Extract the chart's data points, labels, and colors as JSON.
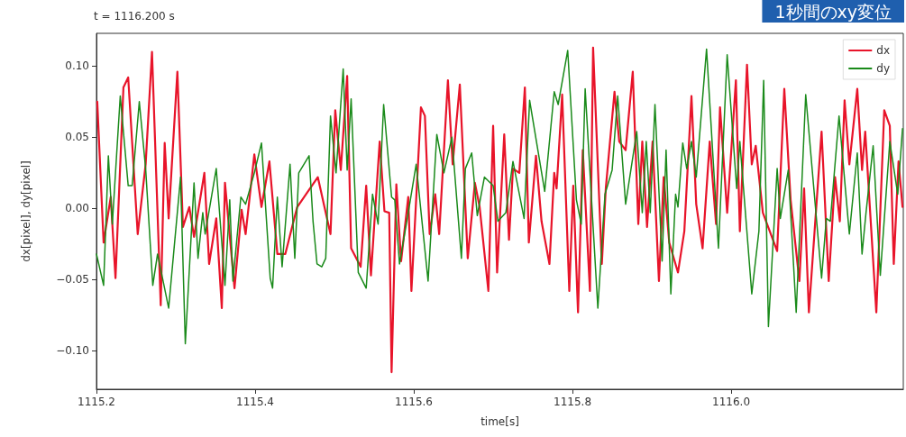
{
  "chart_data": {
    "type": "line",
    "title": "1秒間のxy変位",
    "subtitle": "t = 1116.200 s",
    "xlabel": "time[s]",
    "ylabel": "dx[pixel], dy[pixel]",
    "xlim": [
      1115.2,
      1116.217
    ],
    "ylim": [
      -0.127,
      0.123
    ],
    "xticks": [
      1115.2,
      1115.4,
      1115.6,
      1115.8,
      {
        "value": 1116,
        "label": "1116.0"
      }
    ],
    "yticks": [
      {
        "value": -0.1,
        "label": "−0.10"
      },
      {
        "value": -0.05,
        "label": "−0.05"
      },
      {
        "value": 0,
        "label": "0.00"
      },
      {
        "value": 0.05,
        "label": "0.05"
      },
      {
        "value": 0.1,
        "label": "0.10"
      }
    ],
    "grid": false,
    "legend": "top right",
    "marker": "none",
    "line_style": "solid",
    "series": [
      {
        "name": "dx",
        "color": "#e8142a",
        "x": [
          1115.201,
          1115.209,
          1115.218,
          1115.224,
          1115.234,
          1115.24,
          1115.252,
          1115.262,
          1115.27,
          1115.281,
          1115.286,
          1115.291,
          1115.302,
          1115.309,
          1115.317,
          1115.323,
          1115.336,
          1115.342,
          1115.351,
          1115.358,
          1115.362,
          1115.374,
          1115.383,
          1115.388,
          1115.399,
          1115.408,
          1115.418,
          1115.428,
          1115.438,
          1115.453,
          1115.479,
          1115.495,
          1115.501,
          1115.508,
          1115.516,
          1115.521,
          1115.533,
          1115.54,
          1115.546,
          1115.557,
          1115.563,
          1115.569,
          1115.572,
          1115.578,
          1115.584,
          1115.593,
          1115.597,
          1115.609,
          1115.614,
          1115.62,
          1115.627,
          1115.632,
          1115.643,
          1115.649,
          1115.658,
          1115.668,
          1115.677,
          1115.683,
          1115.694,
          1115.7,
          1115.705,
          1115.714,
          1115.72,
          1115.725,
          1115.733,
          1115.74,
          1115.745,
          1115.754,
          1115.761,
          1115.771,
          1115.777,
          1115.78,
          1115.787,
          1115.796,
          1115.801,
          1115.807,
          1115.813,
          1115.822,
          1115.826,
          1115.837,
          1115.842,
          1115.853,
          1115.859,
          1115.867,
          1115.876,
          1115.883,
          1115.888,
          1115.894,
          1115.901,
          1115.909,
          1115.915,
          1115.922,
          1115.933,
          1115.941,
          1115.95,
          1115.956,
          1115.964,
          1115.973,
          1115.981,
          1115.986,
          1115.995,
          1116.006,
          1116.011,
          1116.02,
          1116.026,
          1116.031,
          1116.04,
          1116.058,
          1116.067,
          1116.075,
          1116.086,
          1116.092,
          1116.098,
          1116.114,
          1116.123,
          1116.131,
          1116.137,
          1116.143,
          1116.149,
          1116.159,
          1116.165,
          1116.169,
          1116.183,
          1116.193,
          1116.2,
          1116.205,
          1116.211,
          1116.216
        ],
        "values": [
          0.075,
          -0.024,
          0.008,
          -0.049,
          0.085,
          0.092,
          -0.018,
          0.031,
          0.11,
          -0.068,
          0.046,
          -0.007,
          0.096,
          -0.013,
          0.001,
          -0.02,
          0.025,
          -0.039,
          -0.007,
          -0.07,
          0.018,
          -0.056,
          -0.001,
          -0.018,
          0.038,
          0.001,
          0.033,
          -0.032,
          -0.032,
          0.001,
          0.022,
          -0.018,
          0.069,
          0.027,
          0.093,
          -0.028,
          -0.041,
          0.016,
          -0.047,
          0.047,
          -0.002,
          -0.003,
          -0.115,
          0.017,
          -0.037,
          0.008,
          -0.058,
          0.071,
          0.065,
          -0.018,
          0.01,
          -0.018,
          0.09,
          0.031,
          0.087,
          -0.035,
          0.018,
          0.001,
          -0.058,
          0.058,
          -0.045,
          0.052,
          -0.022,
          0.028,
          0.025,
          0.085,
          -0.024,
          0.037,
          -0.009,
          -0.039,
          0.025,
          0.014,
          0.08,
          -0.058,
          0.016,
          -0.073,
          0.041,
          -0.058,
          0.113,
          -0.039,
          0.014,
          0.082,
          0.047,
          0.041,
          0.096,
          -0.011,
          0.047,
          -0.013,
          0.047,
          -0.051,
          0.022,
          -0.024,
          -0.045,
          -0.016,
          0.079,
          0.003,
          -0.028,
          0.047,
          -0.011,
          0.071,
          -0.003,
          0.09,
          -0.016,
          0.101,
          0.031,
          0.044,
          -0.003,
          -0.03,
          0.084,
          0.006,
          -0.051,
          0.014,
          -0.073,
          0.054,
          -0.051,
          0.022,
          -0.009,
          0.076,
          0.031,
          0.084,
          0.027,
          0.054,
          -0.073,
          0.069,
          0.058,
          -0.039,
          0.033,
          0.001
        ]
      },
      {
        "name": "dy",
        "color": "#1a8a1a",
        "x": [
          1115.2,
          1115.209,
          1115.215,
          1115.22,
          1115.23,
          1115.24,
          1115.245,
          1115.254,
          1115.262,
          1115.271,
          1115.277,
          1115.291,
          1115.306,
          1115.312,
          1115.323,
          1115.328,
          1115.334,
          1115.337,
          1115.351,
          1115.362,
          1115.368,
          1115.372,
          1115.382,
          1115.388,
          1115.399,
          1115.408,
          1115.419,
          1115.422,
          1115.428,
          1115.434,
          1115.444,
          1115.45,
          1115.455,
          1115.468,
          1115.473,
          1115.478,
          1115.484,
          1115.489,
          1115.495,
          1115.502,
          1115.511,
          1115.516,
          1115.521,
          1115.53,
          1115.54,
          1115.548,
          1115.555,
          1115.562,
          1115.572,
          1115.576,
          1115.582,
          1115.593,
          1115.603,
          1115.618,
          1115.629,
          1115.638,
          1115.648,
          1115.66,
          1115.665,
          1115.673,
          1115.68,
          1115.689,
          1115.7,
          1115.706,
          1115.716,
          1115.725,
          1115.739,
          1115.746,
          1115.765,
          1115.777,
          1115.782,
          1115.794,
          1115.805,
          1115.811,
          1115.816,
          1115.825,
          1115.832,
          1115.841,
          1115.85,
          1115.857,
          1115.867,
          1115.881,
          1115.888,
          1115.893,
          1115.898,
          1115.904,
          1115.913,
          1115.918,
          1115.924,
          1115.93,
          1115.933,
          1115.939,
          1115.944,
          1115.95,
          1115.956,
          1115.969,
          1115.984,
          1115.995,
          1116.007,
          1116.011,
          1116.026,
          1116.035,
          1116.041,
          1116.047,
          1116.058,
          1116.062,
          1116.072,
          1116.082,
          1116.094,
          1116.114,
          1116.12,
          1116.125,
          1116.136,
          1116.149,
          1116.159,
          1116.165,
          1116.17,
          1116.179,
          1116.188,
          1116.2,
          1116.21,
          1116.216
        ],
        "values": [
          -0.032,
          -0.054,
          0.037,
          -0.011,
          0.079,
          0.016,
          0.016,
          0.075,
          0.028,
          -0.054,
          -0.032,
          -0.07,
          0.022,
          -0.095,
          0.018,
          -0.035,
          -0.003,
          -0.018,
          0.028,
          -0.054,
          0.006,
          -0.051,
          0.008,
          0.003,
          0.025,
          0.046,
          -0.049,
          -0.056,
          0.008,
          -0.041,
          0.031,
          -0.035,
          0.025,
          0.037,
          -0.009,
          -0.039,
          -0.041,
          -0.035,
          0.065,
          0.025,
          0.098,
          0.027,
          0.077,
          -0.045,
          -0.056,
          0.01,
          -0.011,
          0.073,
          0.008,
          0.006,
          -0.039,
          -0.003,
          0.031,
          -0.051,
          0.052,
          0.025,
          0.05,
          -0.035,
          0.028,
          0.039,
          -0.005,
          0.022,
          0.016,
          -0.009,
          -0.003,
          0.033,
          -0.007,
          0.076,
          0.012,
          0.082,
          0.073,
          0.111,
          0.006,
          -0.011,
          0.084,
          -0.003,
          -0.07,
          0.01,
          0.027,
          0.079,
          0.003,
          0.054,
          -0.003,
          0.047,
          -0.003,
          0.073,
          -0.037,
          0.041,
          -0.06,
          0.01,
          0.001,
          0.046,
          0.028,
          0.047,
          0.022,
          0.112,
          -0.028,
          0.108,
          0.014,
          0.047,
          -0.06,
          -0.016,
          0.09,
          -0.083,
          0.028,
          -0.007,
          0.027,
          -0.073,
          0.08,
          -0.049,
          -0.007,
          -0.009,
          0.065,
          -0.018,
          0.039,
          -0.032,
          -0.003,
          0.044,
          -0.047,
          0.047,
          0.01,
          0.056
        ]
      }
    ]
  }
}
